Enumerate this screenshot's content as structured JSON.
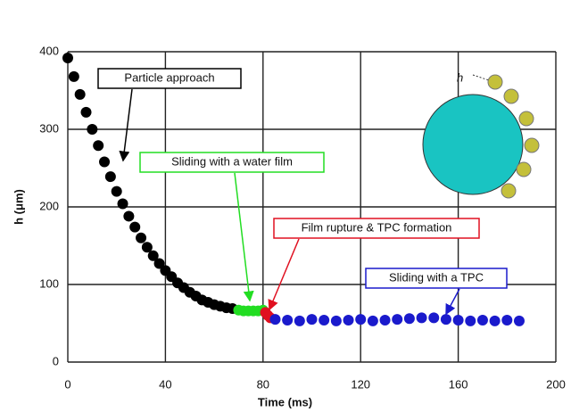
{
  "chart_data": {
    "type": "scatter",
    "x_label": "Time (ms)",
    "y_label": "h (μm)",
    "inset_label": "h",
    "xlim": [
      0,
      200
    ],
    "ylim": [
      0,
      400
    ],
    "xticks": [
      0,
      40,
      80,
      120,
      160,
      200
    ],
    "yticks": [
      0,
      100,
      200,
      300,
      400
    ],
    "grid": true,
    "series": [
      {
        "name": "Particle approach",
        "color": "#000000",
        "x": [
          0,
          2.5,
          5,
          7.5,
          10,
          12.5,
          15,
          17.5,
          20,
          22.5,
          25,
          27.5,
          30,
          32.5,
          35,
          37.5,
          40,
          42.5,
          45,
          47.5,
          50,
          52.5,
          55,
          57.5,
          60,
          62.5,
          65,
          67.5
        ],
        "values": [
          392,
          368,
          345,
          322,
          300,
          279,
          258,
          239,
          220,
          204,
          188,
          174,
          160,
          148,
          137,
          127,
          118,
          110,
          102,
          96,
          90,
          85,
          80,
          77,
          74,
          72,
          70,
          69
        ]
      },
      {
        "name": "Sliding with a water film",
        "color": "#22dd22",
        "x": [
          70,
          72,
          74,
          76,
          78,
          80
        ],
        "values": [
          67,
          66,
          66,
          66,
          66,
          67
        ]
      },
      {
        "name": "Film rupture & TPC formation",
        "color": "#e01020",
        "x": [
          81,
          82,
          83
        ],
        "values": [
          64,
          60,
          57
        ]
      },
      {
        "name": "Sliding with a TPC",
        "color": "#1a1acc",
        "x": [
          85,
          90,
          95,
          100,
          105,
          110,
          115,
          120,
          125,
          130,
          135,
          140,
          145,
          150,
          155,
          160,
          165,
          170,
          175,
          180,
          185
        ],
        "values": [
          55,
          54,
          53,
          55,
          54,
          53,
          54,
          55,
          53,
          54,
          55,
          56,
          57,
          57,
          55,
          54,
          53,
          54,
          53,
          54,
          53
        ]
      }
    ]
  }
}
